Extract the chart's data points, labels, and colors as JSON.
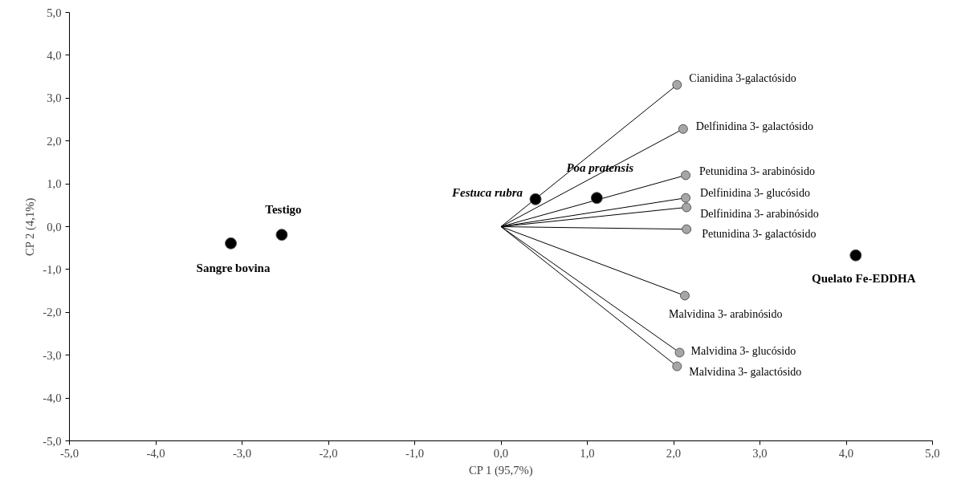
{
  "chart_data": {
    "type": "scatter",
    "xlabel": "CP 1 (95,7%)",
    "ylabel": "CP 2 (4,1%)",
    "xlim": [
      -5,
      5
    ],
    "ylim": [
      -5,
      5
    ],
    "xticks": [
      {
        "value": -5,
        "label": "-5,0"
      },
      {
        "value": -4,
        "label": "-4,0"
      },
      {
        "value": -3,
        "label": "-3,0"
      },
      {
        "value": -2,
        "label": "-2,0"
      },
      {
        "value": -1,
        "label": "-1,0"
      },
      {
        "value": 0,
        "label": "0,0"
      },
      {
        "value": 1,
        "label": "1,0"
      },
      {
        "value": 2,
        "label": "2,0"
      },
      {
        "value": 3,
        "label": "3,0"
      },
      {
        "value": 4,
        "label": "4,0"
      },
      {
        "value": 5,
        "label": "5,0"
      }
    ],
    "yticks": [
      {
        "value": -5,
        "label": "-5,0"
      },
      {
        "value": -4,
        "label": "-4,0"
      },
      {
        "value": -3,
        "label": "-3,0"
      },
      {
        "value": -2,
        "label": "-2,0"
      },
      {
        "value": -1,
        "label": "-1,0"
      },
      {
        "value": 0,
        "label": "0,0"
      },
      {
        "value": 1,
        "label": "1,0"
      },
      {
        "value": 2,
        "label": "2,0"
      },
      {
        "value": 3,
        "label": "3,0"
      },
      {
        "value": 4,
        "label": "4,0"
      },
      {
        "value": 5,
        "label": "5,0"
      }
    ],
    "grid": false,
    "marker": "circle",
    "series": [
      {
        "type": "line",
        "color": "#000000",
        "marker": "none",
        "x": [
          0,
          2.04
        ],
        "values": [
          0,
          3.31
        ]
      },
      {
        "type": "line",
        "color": "#000000",
        "marker": "none",
        "x": [
          0,
          2.11
        ],
        "values": [
          0,
          2.28
        ]
      },
      {
        "type": "line",
        "color": "#000000",
        "marker": "none",
        "x": [
          0,
          2.14
        ],
        "values": [
          0,
          1.2
        ]
      },
      {
        "type": "line",
        "color": "#000000",
        "marker": "none",
        "x": [
          0,
          2.14
        ],
        "values": [
          0,
          0.67
        ]
      },
      {
        "type": "line",
        "color": "#000000",
        "marker": "none",
        "x": [
          0,
          2.15
        ],
        "values": [
          0,
          0.45
        ]
      },
      {
        "type": "line",
        "color": "#000000",
        "marker": "none",
        "x": [
          0,
          2.15
        ],
        "values": [
          0,
          -0.06
        ]
      },
      {
        "type": "line",
        "color": "#000000",
        "marker": "none",
        "x": [
          0,
          2.13
        ],
        "values": [
          0,
          -1.61
        ]
      },
      {
        "type": "line",
        "color": "#000000",
        "marker": "none",
        "x": [
          0,
          2.07
        ],
        "values": [
          0,
          -2.94
        ]
      },
      {
        "type": "line",
        "color": "#000000",
        "marker": "none",
        "x": [
          0,
          2.04
        ],
        "values": [
          0,
          -3.26
        ]
      },
      {
        "color": "#a6a6a6",
        "x": [
          2.04,
          2.11,
          2.14,
          2.14,
          2.15,
          2.15,
          2.13,
          2.07,
          2.04
        ],
        "values": [
          3.31,
          2.28,
          1.2,
          0.67,
          0.45,
          -0.06,
          -1.61,
          -2.94,
          -3.26
        ]
      },
      {
        "color": "#000000",
        "x": [
          -2.54,
          -3.13,
          0.4,
          1.11,
          4.11
        ],
        "values": [
          -0.19,
          -0.39,
          0.64,
          0.67,
          -0.67
        ]
      }
    ],
    "annotations": [
      {
        "text": "Cianidina 3-galactósido",
        "x": 2.04,
        "y": 3.31
      },
      {
        "text": "Delfinidina 3- galactósido",
        "x": 2.11,
        "y": 2.28
      },
      {
        "text": "Petunidina 3- arabinósido",
        "x": 2.14,
        "y": 1.2
      },
      {
        "text": "Delfinidina 3- glucósido",
        "x": 2.14,
        "y": 0.67
      },
      {
        "text": "Delfinidina 3- arabinósido",
        "x": 2.15,
        "y": 0.45
      },
      {
        "text": "Petunidina 3- galactósido",
        "x": 2.15,
        "y": -0.06
      },
      {
        "text": "Malvidina 3- arabinósido",
        "x": 2.13,
        "y": -1.61
      },
      {
        "text": "Malvidina 3- glucósido",
        "x": 2.07,
        "y": -2.94
      },
      {
        "text": "Malvidina 3- galactósido",
        "x": 2.04,
        "y": -3.26
      },
      {
        "text": "Testigo",
        "x": -2.54,
        "y": -0.19
      },
      {
        "text": "Sangre bovina",
        "x": -3.13,
        "y": -0.39
      },
      {
        "text": "Festuca rubra",
        "x": 0.4,
        "y": 0.64
      },
      {
        "text": "Poa pratensis",
        "x": 1.11,
        "y": 0.67
      },
      {
        "text": "Quelato Fe-EDDHA",
        "x": 4.11,
        "y": -0.67
      }
    ]
  }
}
